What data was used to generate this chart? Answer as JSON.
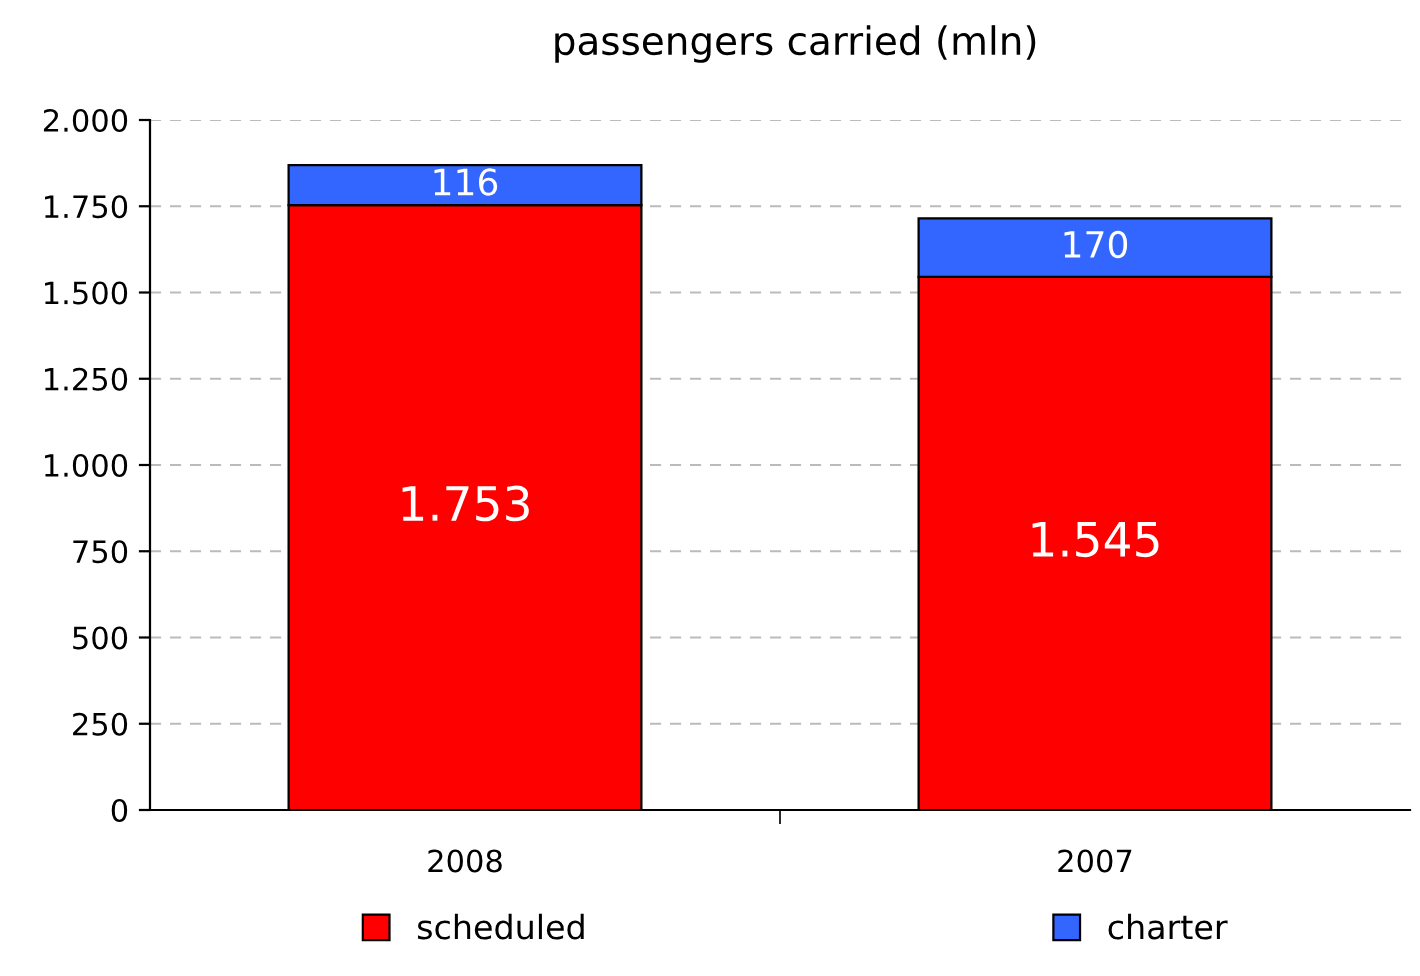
{
  "chart_data": {
    "type": "bar",
    "title": "passengers carried (mln)",
    "categories": [
      "2008",
      "2007"
    ],
    "stacked": true,
    "series": [
      {
        "name": "scheduled",
        "color": "#ff0000",
        "values": [
          1753,
          1545
        ],
        "value_labels": [
          "1.753",
          "1.545"
        ]
      },
      {
        "name": "charter",
        "color": "#3366ff",
        "values": [
          116,
          170
        ],
        "value_labels": [
          "116",
          "170"
        ]
      }
    ],
    "ylim": [
      0,
      2000
    ],
    "yticks": [
      {
        "value": 0,
        "label": "0"
      },
      {
        "value": 250,
        "label": "250"
      },
      {
        "value": 500,
        "label": "500"
      },
      {
        "value": 750,
        "label": "750"
      },
      {
        "value": 1000,
        "label": "1.000"
      },
      {
        "value": 1250,
        "label": "1.250"
      },
      {
        "value": 1500,
        "label": "1.500"
      },
      {
        "value": 1750,
        "label": "1.750"
      },
      {
        "value": 2000,
        "label": "2.000"
      }
    ],
    "grid": "y",
    "legend": "bottom"
  }
}
